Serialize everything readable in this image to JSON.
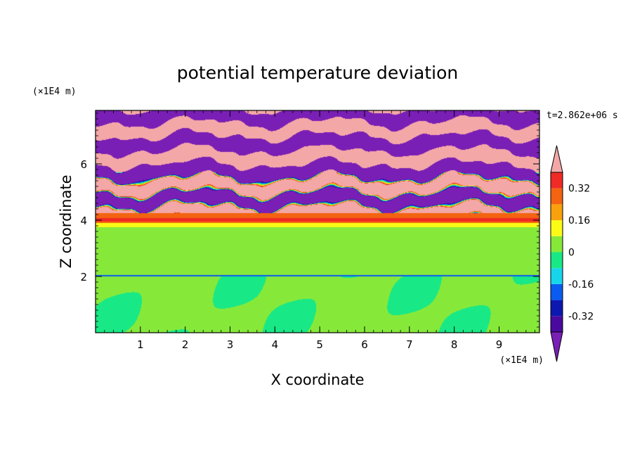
{
  "chart_data": {
    "type": "heatmap",
    "title": "potential temperature deviation",
    "xlabel": "X coordinate",
    "ylabel": "Z coordinate",
    "x_unit": "(×1E4 m)",
    "y_unit": "(×1E4 m)",
    "time_label": "t=2.862e+06 s",
    "xlim": [
      0,
      9.9
    ],
    "ylim": [
      0,
      7.9
    ],
    "x_ticks": [
      "1",
      "2",
      "3",
      "4",
      "5",
      "6",
      "7",
      "8",
      "9"
    ],
    "x_tick_values": [
      1,
      2,
      3,
      4,
      5,
      6,
      7,
      8,
      9
    ],
    "y_ticks": [
      "2",
      "4",
      "6"
    ],
    "y_tick_values": [
      2,
      4,
      6
    ],
    "colorbar": {
      "levels": [
        -0.4,
        -0.32,
        -0.24,
        -0.16,
        -0.08,
        0,
        0.08,
        0.16,
        0.24,
        0.32,
        0.4
      ],
      "colors": [
        "#7a1fb5",
        "#4a0aa0",
        "#0c18b0",
        "#0a5cf0",
        "#17d6ec",
        "#19e886",
        "#86e93a",
        "#fbfb16",
        "#f9a10c",
        "#f36310",
        "#f02a24",
        "#f4a7a7"
      ],
      "tick_labels": [
        "0.32",
        "0.16",
        "0",
        "-0.16",
        "-0.32"
      ],
      "tick_values": [
        0.32,
        0.16,
        0,
        -0.16,
        -0.32
      ],
      "extend": "both"
    },
    "field_bands": [
      {
        "z": [
          7.1,
          7.9
        ],
        "value": "-0.4 / 0.4 alternating"
      },
      {
        "z": [
          4.2,
          7.1
        ],
        "value": "-0.4 / 0.4 alternating, mixed"
      },
      {
        "z": [
          3.7,
          4.2
        ],
        "value": "0.3"
      },
      {
        "z": [
          2.0,
          3.7
        ],
        "value": "0 / 0.05"
      },
      {
        "z": [
          0.0,
          2.0
        ],
        "value": "0.05 with -0.02 blobs"
      }
    ]
  }
}
